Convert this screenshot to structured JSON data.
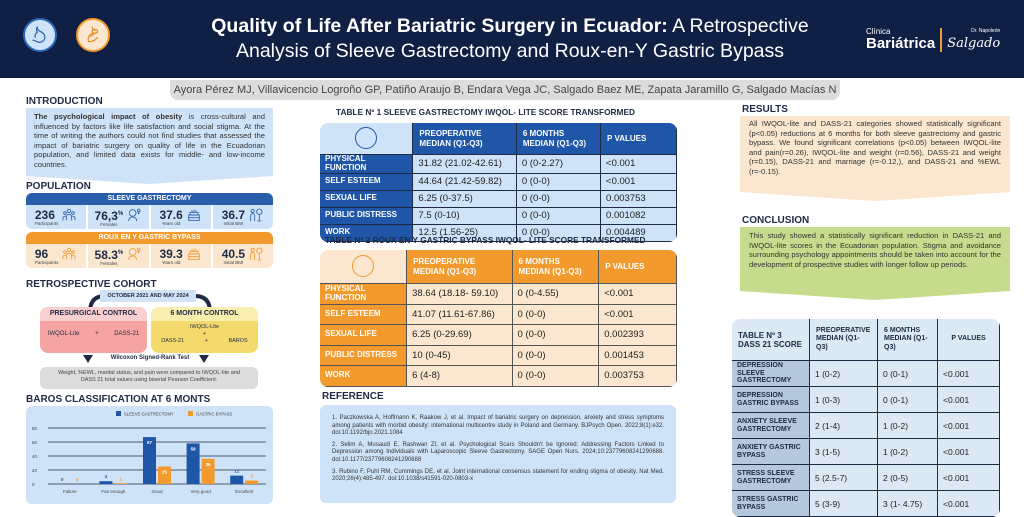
{
  "header": {
    "title_bold": "Quality of Life After Bariatric Surgery in Ecuador:",
    "title_rest": " A Retrospective Analysis of Sleeve Gastrectomy and Roux-en-Y Gastric Bypass",
    "logo_line1": "Clínica",
    "logo_line2": "Bariátrica",
    "logo_small": "Dr. Napoleón",
    "logo_signature": "Salgado",
    "icons": [
      "stomach-icon",
      "bypass-stomach-icon"
    ]
  },
  "authors": "Ayora Pérez MJ, Villavicencio Logroño GP, Patiño Araujo B, Endara Vega JC, Salgado Baez ME, Zapata Jaramillo G, Salgado Macías N",
  "introduction": {
    "heading": "INTRODUCTION",
    "bold": "The psychological impact of obesity",
    "text": " is cross-cultural and influenced by factors like life satisfaction and social stigma. At the time of writing the authors could not find studies that assessed the impact of bariatric surgery on quality of life in the Ecuadorian population, and limited data exists for middle- and low-income countries."
  },
  "population": {
    "heading": "POPULATION",
    "groups": [
      {
        "name": "SLEEVE GASTRECTOMY",
        "color": "#2b5eaa",
        "bg": "#cfe3f8",
        "stats": [
          {
            "value": "236",
            "sup": "",
            "label": "Participants",
            "icon": "participants-icon"
          },
          {
            "value": "76,3",
            "sup": "%",
            "label": "Females",
            "icon": "female-icon"
          },
          {
            "value": "37.6",
            "sup": "",
            "label": "Years old",
            "icon": "cake-icon"
          },
          {
            "value": "36.7",
            "sup": "",
            "label": "Initial BMI",
            "icon": "bmi-icon"
          }
        ]
      },
      {
        "name": "ROUX EN Y GASTRIC BYPASS",
        "color": "#f39a2e",
        "bg": "#fbe6cf",
        "stats": [
          {
            "value": "96",
            "sup": "",
            "label": "Participants",
            "icon": "participants-icon"
          },
          {
            "value": "58.3",
            "sup": "%",
            "label": "Females",
            "icon": "female-icon"
          },
          {
            "value": "39.3",
            "sup": "",
            "label": "Years old",
            "icon": "cake-icon"
          },
          {
            "value": "40.5",
            "sup": "",
            "label": "Initial BMI",
            "icon": "bmi-icon"
          }
        ]
      }
    ]
  },
  "cohort": {
    "heading": "RETROSPECTIVE COHORT",
    "period": "OCTOBER 2021 AND MAY 2024",
    "presurgical": {
      "title": "PRESURGICAL CONTROL",
      "item1": "IWQOL-Lite",
      "plus": "+",
      "item2": "DASS-21"
    },
    "six_month": {
      "title": "6 MONTH CONTROL",
      "item1": "IWQOL-Lite",
      "plus": "+",
      "item2": "DASS-21",
      "plus2": "+",
      "item3": "BAROS"
    },
    "test": "Wilcoxon Signed-Rank Test",
    "note": "Weight, %EWL, marital status, and pain were compared to IWQOL-lite and DASS 21 total values using biserial Pearson Coefficient."
  },
  "baros": {
    "heading": "BAROS CLASSIFICATION AT 6 MONTS"
  },
  "chart_data": {
    "type": "bar",
    "title": "BAROS CLASSIFICATION AT 6 MONTS",
    "categories": [
      "Failure",
      "Fair enough",
      "Good",
      "Very good",
      "Excellent"
    ],
    "series": [
      {
        "name": "SLEEVE GASTRECTOMY",
        "color": "#1f56a8",
        "values": [
          0,
          4,
          67,
          58,
          12
        ]
      },
      {
        "name": "GASTRIC BYPASS",
        "color": "#f39a2e",
        "values": [
          0,
          1,
          25,
          36,
          5
        ]
      }
    ],
    "yticks": [
      0,
      20,
      40,
      60,
      80
    ],
    "ylim": [
      0,
      80
    ],
    "grid": true,
    "legend": "top-center",
    "xlabel": "",
    "ylabel": ""
  },
  "table1": {
    "title": "TABLE Nº 1 SLEEVE GASTRECTOMY IWQOL- LITE SCORE TRANSFORMED",
    "headers": [
      "PREOPERATIVE MEDIAN (Q1-Q3)",
      "6 MONTHS MEDIAN (Q1-Q3)",
      "P VALUES"
    ],
    "rows": [
      {
        "label": "PHYSICAL FUNCTION",
        "pre": "31.82 (21.02-42.61)",
        "post": "0 (0-2.27)",
        "p": "<0.001"
      },
      {
        "label": "SELF ESTEEM",
        "pre": "44.64 (21.42-59.82)",
        "post": "0 (0-0)",
        "p": "<0.001"
      },
      {
        "label": "SEXUAL LIFE",
        "pre": "6.25 (0-37.5)",
        "post": "0 (0-0)",
        "p": "0.003753"
      },
      {
        "label": "PUBLIC DISTRESS",
        "pre": "7.5 (0-10)",
        "post": "0 (0-0)",
        "p": "0.001082"
      },
      {
        "label": "WORK",
        "pre": "12.5 (1.56-25)",
        "post": "0 (0-0)",
        "p": "0.004489"
      }
    ]
  },
  "table2": {
    "title": "TABLE Nº 2 ROUX EN Y GASTRIC BYPASS IWQOL- LITE SCORE TRANSFORMED",
    "headers": [
      "PREOPERATIVE MEDIAN (Q1-Q3)",
      "6 MONTHS MEDIAN (Q1-Q3)",
      "P VALUES"
    ],
    "rows": [
      {
        "label": "PHYSICAL FUNCTION",
        "pre": "38.64 (18.18- 59.10)",
        "post": "0 (0-4.55)",
        "p": "<0.001"
      },
      {
        "label": "SELF ESTEEM",
        "pre": "41.07 (11.61-67.86)",
        "post": "0 (0-0)",
        "p": "<0.001"
      },
      {
        "label": "SEXUAL LIFE",
        "pre": "6.25 (0-29.69)",
        "post": "0 (0-0)",
        "p": "0.002393"
      },
      {
        "label": "PUBLIC DISTRESS",
        "pre": "10 (0-45)",
        "post": "0 (0-0)",
        "p": "0.001453"
      },
      {
        "label": "WORK",
        "pre": "6 (4-8)",
        "post": "0 (0-0)",
        "p": "0.003753"
      }
    ]
  },
  "reference": {
    "heading": "REFERENCE",
    "items": [
      "1. Paczkowska A, Hoffmann K, Raakow J, et al. Impact of bariatric surgery on depression, anxiety and stress symptoms among patients with morbid obesity: international multicentre study in Poland and Germany. BJPsych Open. 2022;8(1):e32. doi:10.1192/bjo.2021.1084",
      "2. Selim A, Musaudi E, Rashwan ZI, et al. Psychological Scars Shouldn't be Ignored: Addressing Factors Linked to Depression among Individuals with Laparoscopic Sleeve Gastrectomy. SAGE Open Nurs. 2024;10:23779608241290688. doi:10.1177/23779608241290688",
      "3.  Rubino F, Puhl RM, Cummings DE, et al. Joint international consensus statement for ending stigma of obesity. Nat Med. 2020;26(4):485-497. doi:10.1038/s41591-020-0803-x"
    ]
  },
  "results": {
    "heading": "RESULTS",
    "text": "All IWQOL-lite and DASS-21 categories showed statistically significant (p<0.05) reductions at 6 months for both sleeve gastrectomy and gastric bypass. We found significant correlations (p<0.05) between IWQOL-lite and pain(r=0.26), IWQOL-lite and weight (r=0.56), DASS-21 and weight (r=0.15), DASS-21 and marriage (r=-0.12,), and DASS-21 and %EWL (r=-0.15)."
  },
  "conclusion": {
    "heading": "CONCLUSION",
    "text": "This study showed a statistically significant reduction in DASS-21 and IWQOL-lite scores in the Ecuadorian population. Stigma and avoidance surrounding psychology appointments should be taken into account for the development of prospective studies with longer follow up periods."
  },
  "table3": {
    "title": "TABLE Nº 3 DASS 21 SCORE",
    "headers": [
      "PREOPERATIVE MEDIAN (Q1-Q3)",
      "6 MONTHS MEDIAN (Q1-Q3)",
      "P VALUES"
    ],
    "rows": [
      {
        "label": "DEPRESSION SLEEVE GASTRECTOMY",
        "pre": "1 (0-2)",
        "post": "0 (0-1)",
        "p": "<0.001"
      },
      {
        "label": "DEPRESSION GASTRIC BYPASS",
        "pre": "1 (0-3)",
        "post": "0 (0-1)",
        "p": "<0.001"
      },
      {
        "label": "ANXIETY SLEEVE GASTRECTOMY",
        "pre": "2 (1-4)",
        "post": "1 (0-2)",
        "p": "<0.001"
      },
      {
        "label": "ANXIETY GASTRIC BYPASS",
        "pre": "3 (1-5)",
        "post": "1 (0-2)",
        "p": "<0.001"
      },
      {
        "label": "STRESS SLEEVE GASTRECTOMY",
        "pre": "5 (2.5-7)",
        "post": "2 (0-5)",
        "p": "<0.001"
      },
      {
        "label": "STRESS GASTRIC BYPASS",
        "pre": "5 (3-9)",
        "post": "3 (1- 4.75)",
        "p": "<0.001"
      }
    ]
  }
}
